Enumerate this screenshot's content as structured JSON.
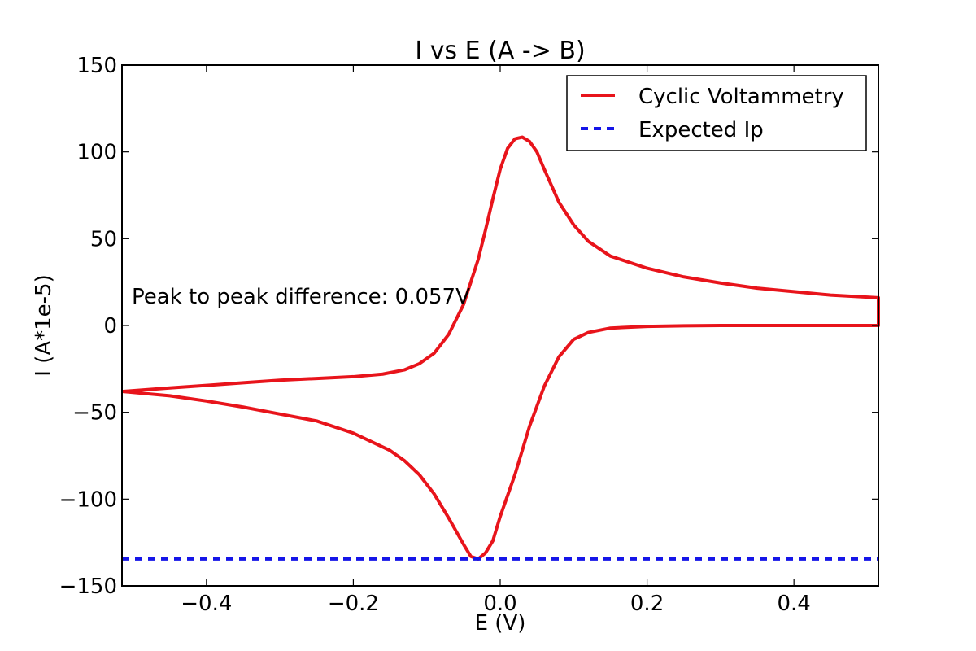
{
  "chart_data": {
    "type": "line",
    "title": "I vs E (A -> B)",
    "xlabel": "E (V)",
    "ylabel": "I (A*1e-5)",
    "xlim": [
      -0.515,
      0.515
    ],
    "ylim": [
      -150,
      150
    ],
    "x_ticks": [
      -0.4,
      -0.2,
      0.0,
      0.2,
      0.4
    ],
    "x_tick_labels": [
      "−0.4",
      "−0.2",
      "0.0",
      "0.2",
      "0.4"
    ],
    "y_ticks": [
      150,
      100,
      50,
      0,
      -50,
      -100,
      -150
    ],
    "y_tick_labels": [
      "150",
      "100",
      "50",
      "0",
      "−50",
      "−100",
      "−150"
    ],
    "grid": false,
    "legend_position": "top-right",
    "annotation": "Peak to peak difference: 0.057V",
    "series": [
      {
        "name": "Cyclic Voltammetry",
        "color": "#e8141b",
        "style": "solid",
        "x": [
          -0.515,
          -0.45,
          -0.4,
          -0.35,
          -0.3,
          -0.25,
          -0.2,
          -0.16,
          -0.13,
          -0.11,
          -0.09,
          -0.07,
          -0.05,
          -0.03,
          -0.02,
          -0.01,
          0.0,
          0.01,
          0.02,
          0.03,
          0.04,
          0.05,
          0.06,
          0.08,
          0.1,
          0.12,
          0.15,
          0.2,
          0.25,
          0.3,
          0.35,
          0.4,
          0.45,
          0.515,
          0.515,
          0.45,
          0.4,
          0.35,
          0.3,
          0.25,
          0.2,
          0.15,
          0.12,
          0.1,
          0.08,
          0.06,
          0.04,
          0.02,
          0.0,
          -0.01,
          -0.02,
          -0.03,
          -0.04,
          -0.05,
          -0.07,
          -0.09,
          -0.11,
          -0.13,
          -0.15,
          -0.2,
          -0.25,
          -0.3,
          -0.35,
          -0.4,
          -0.45,
          -0.515
        ],
        "y": [
          -38,
          -36,
          -34.5,
          -33,
          -31.5,
          -30.5,
          -29.5,
          -28,
          -25.5,
          -22,
          -16,
          -5,
          12,
          38,
          55,
          73,
          90,
          102,
          107.5,
          108.5,
          106,
          100,
          90,
          71,
          58,
          48.5,
          40,
          33,
          28,
          24.5,
          21.5,
          19.5,
          17.5,
          16,
          0,
          0,
          0,
          0,
          0,
          -0.2,
          -0.5,
          -1.5,
          -4,
          -8,
          -18,
          -35,
          -58,
          -86,
          -110,
          -124,
          -131,
          -134.5,
          -133,
          -126,
          -111,
          -97,
          -86,
          -78,
          -72,
          -62,
          -55,
          -51,
          -47,
          -43.5,
          -40.5,
          -38
        ]
      },
      {
        "name": "Expected Ip",
        "color": "#1515e8",
        "style": "dashed",
        "x": [
          -0.515,
          0.515
        ],
        "y": [
          -134.5,
          -134.5
        ]
      }
    ]
  }
}
